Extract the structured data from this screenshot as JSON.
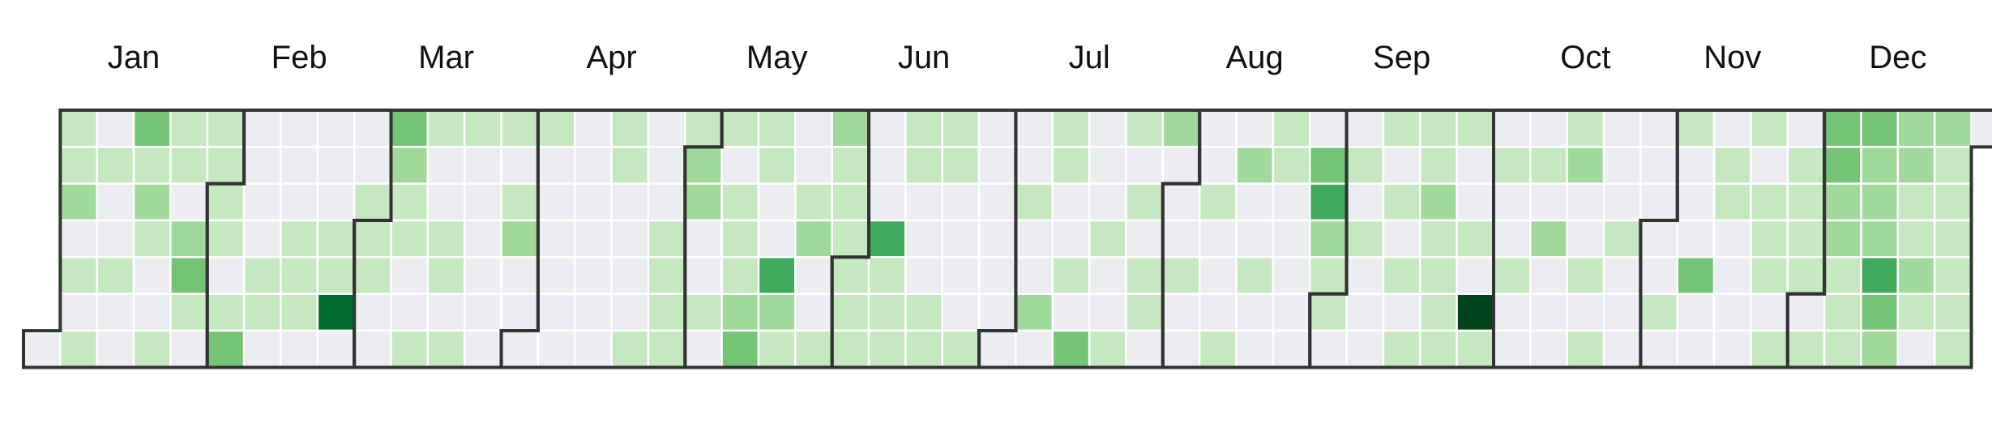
{
  "chart_data": {
    "type": "heatmap",
    "layout": "calendar",
    "week_start": "sunday",
    "first_day_weekday": 6,
    "days_in_year": 366,
    "months": [
      "Jan",
      "Feb",
      "Mar",
      "Apr",
      "May",
      "Jun",
      "Jul",
      "Aug",
      "Sep",
      "Oct",
      "Nov",
      "Dec"
    ],
    "month_lengths": [
      31,
      29,
      31,
      30,
      31,
      30,
      31,
      31,
      30,
      31,
      30,
      31
    ],
    "color_scale": [
      "#ebedf0",
      "#c6e8c0",
      "#a1d99b",
      "#74c476",
      "#41ab5d",
      "#238b45",
      "#006d2c",
      "#00441b"
    ],
    "levels": [
      0,
      1,
      1,
      2,
      0,
      1,
      0,
      1,
      0,
      1,
      0,
      0,
      1,
      0,
      0,
      3,
      1,
      2,
      1,
      0,
      0,
      1,
      1,
      1,
      0,
      2,
      3,
      1,
      0,
      1,
      1,
      1,
      1,
      0,
      1,
      3,
      0,
      0,
      0,
      0,
      1,
      1,
      0,
      0,
      0,
      0,
      1,
      1,
      1,
      0,
      0,
      0,
      0,
      1,
      1,
      6,
      0,
      0,
      0,
      1,
      1,
      1,
      0,
      0,
      3,
      2,
      1,
      1,
      0,
      0,
      1,
      1,
      0,
      0,
      1,
      1,
      0,
      1,
      1,
      0,
      0,
      0,
      0,
      0,
      0,
      1,
      0,
      1,
      2,
      0,
      0,
      0,
      1,
      0,
      0,
      0,
      0,
      0,
      0,
      0,
      0,
      0,
      0,
      0,
      0,
      0,
      1,
      1,
      0,
      0,
      0,
      0,
      1,
      0,
      0,
      0,
      1,
      1,
      1,
      1,
      1,
      2,
      2,
      0,
      0,
      1,
      0,
      1,
      0,
      1,
      1,
      1,
      2,
      3,
      1,
      1,
      0,
      0,
      4,
      2,
      1,
      0,
      0,
      1,
      2,
      0,
      0,
      1,
      2,
      1,
      1,
      1,
      1,
      1,
      1,
      0,
      0,
      0,
      4,
      1,
      1,
      1,
      1,
      1,
      0,
      0,
      0,
      1,
      1,
      1,
      1,
      0,
      0,
      0,
      0,
      1,
      0,
      0,
      0,
      0,
      0,
      0,
      0,
      0,
      0,
      1,
      0,
      0,
      2,
      0,
      1,
      1,
      0,
      0,
      1,
      0,
      3,
      0,
      0,
      0,
      1,
      0,
      0,
      1,
      1,
      0,
      1,
      0,
      1,
      1,
      0,
      2,
      0,
      0,
      0,
      1,
      0,
      0,
      0,
      0,
      1,
      0,
      0,
      0,
      1,
      0,
      2,
      0,
      0,
      1,
      0,
      0,
      1,
      1,
      0,
      0,
      0,
      0,
      0,
      0,
      3,
      4,
      2,
      1,
      1,
      0,
      0,
      1,
      0,
      1,
      0,
      0,
      0,
      1,
      0,
      1,
      0,
      1,
      0,
      1,
      1,
      1,
      2,
      1,
      1,
      1,
      1,
      1,
      0,
      0,
      1,
      0,
      7,
      1,
      0,
      1,
      0,
      0,
      1,
      0,
      0,
      0,
      1,
      0,
      2,
      0,
      0,
      0,
      1,
      2,
      0,
      0,
      1,
      0,
      1,
      0,
      0,
      0,
      1,
      0,
      0,
      0,
      0,
      0,
      0,
      0,
      0,
      1,
      0,
      1,
      0,
      0,
      0,
      3,
      0,
      0,
      0,
      1,
      1,
      0,
      0,
      0,
      0,
      1,
      0,
      1,
      1,
      1,
      0,
      1,
      0,
      1,
      1,
      1,
      1,
      0,
      1,
      3,
      3,
      2,
      2,
      1,
      1,
      1,
      3,
      2,
      2,
      2,
      4,
      3,
      2,
      2,
      2,
      1,
      1,
      2,
      1,
      0,
      2,
      1,
      1,
      1,
      1,
      1,
      1
    ]
  }
}
